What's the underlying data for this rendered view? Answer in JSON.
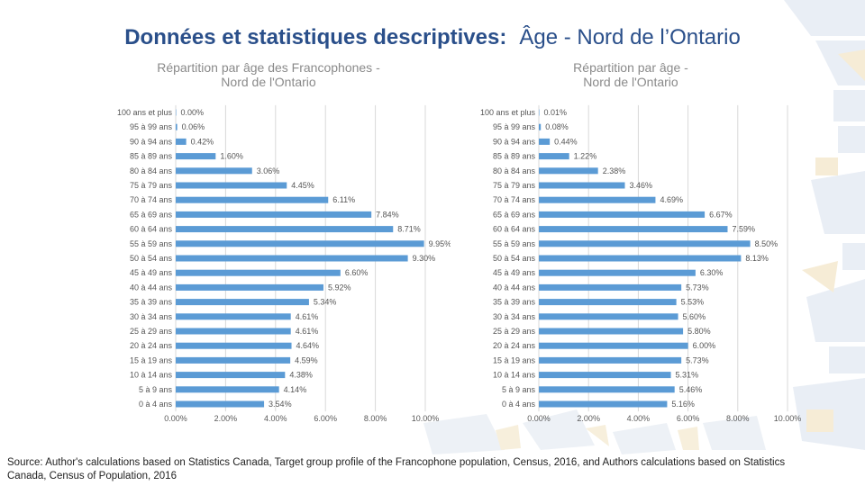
{
  "slide": {
    "title_main": "Données et statistiques descriptives:",
    "title_sub": "Âge - Nord de l’Ontario",
    "source": "Source: Author's calculations based on Statistics Canada, Target group profile of the Francophone population, Census, 2016, and Authors calculations based on Statistics Canada, Census of Population, 2016"
  },
  "colors": {
    "bar": "#5b9bd5",
    "grid": "#d9d9d9",
    "title": "#2a4f8a"
  },
  "chart_data": [
    {
      "type": "bar",
      "orientation": "horizontal",
      "title_lines": [
        "Répartition par âge des Francophones -",
        "Nord de l'Ontario"
      ],
      "categories": [
        "100 ans et plus",
        "95 à 99 ans",
        "90 à 94 ans",
        "85 à 89 ans",
        "80 à 84 ans",
        "75 à 79 ans",
        "70 à 74 ans",
        "65 à 69 ans",
        "60 à 64 ans",
        "55 à 59 ans",
        "50 à 54 ans",
        "45 à 49 ans",
        "40 à 44 ans",
        "35 à 39 ans",
        "30 à 34 ans",
        "25 à 29 ans",
        "20 à 24 ans",
        "15 à 19 ans",
        "10 à 14 ans",
        "5 à 9 ans",
        "0 à 4 ans"
      ],
      "values": [
        0.0,
        0.06,
        0.42,
        1.6,
        3.06,
        4.45,
        6.11,
        7.84,
        8.71,
        9.95,
        9.3,
        6.6,
        5.92,
        5.34,
        4.61,
        4.61,
        4.64,
        4.59,
        4.38,
        4.14,
        3.54
      ],
      "data_labels": [
        "0.00%",
        "0.06%",
        "0.42%",
        "1.60%",
        "3.06%",
        "4.45%",
        "6.11%",
        "7.84%",
        "8.71%",
        "9.95%",
        "9.30%",
        "6.60%",
        "5.92%",
        "5.34%",
        "4.61%",
        "4.61%",
        "4.64%",
        "4.59%",
        "4.38%",
        "4.14%",
        "3.54%"
      ],
      "xlim": [
        0,
        10
      ],
      "xticks": [
        "0.00%",
        "2.00%",
        "4.00%",
        "6.00%",
        "8.00%",
        "10.00%"
      ],
      "grid": true
    },
    {
      "type": "bar",
      "orientation": "horizontal",
      "title_lines": [
        "Répartition par âge -",
        "Nord de l'Ontario"
      ],
      "categories": [
        "100 ans et plus",
        "95 à 99 ans",
        "90 à 94 ans",
        "85 à 89 ans",
        "80 à 84 ans",
        "75 à 79 ans",
        "70 à 74 ans",
        "65 à 69 ans",
        "60 à 64 ans",
        "55 à 59 ans",
        "50 à 54 ans",
        "45 à 49 ans",
        "40 à 44 ans",
        "35 à 39 ans",
        "30 à 34 ans",
        "25 à 29 ans",
        "20 à 24 ans",
        "15 à 19 ans",
        "10 à 14 ans",
        "5 à 9 ans",
        "0 à 4 ans"
      ],
      "values": [
        0.01,
        0.08,
        0.44,
        1.22,
        2.38,
        3.46,
        4.69,
        6.67,
        7.59,
        8.5,
        8.13,
        6.3,
        5.73,
        5.53,
        5.6,
        5.8,
        6.0,
        5.73,
        5.31,
        5.46,
        5.16
      ],
      "data_labels": [
        "0.01%",
        "0.08%",
        "0.44%",
        "1.22%",
        "2.38%",
        "3.46%",
        "4.69%",
        "6.67%",
        "7.59%",
        "8.50%",
        "8.13%",
        "6.30%",
        "5.73%",
        "5.53%",
        "5.60%",
        "5.80%",
        "6.00%",
        "5.73%",
        "5.31%",
        "5.46%",
        "5.16%"
      ],
      "xlim": [
        0,
        10
      ],
      "xticks": [
        "0.00%",
        "2.00%",
        "4.00%",
        "6.00%",
        "8.00%",
        "10.00%"
      ],
      "grid": true
    }
  ]
}
